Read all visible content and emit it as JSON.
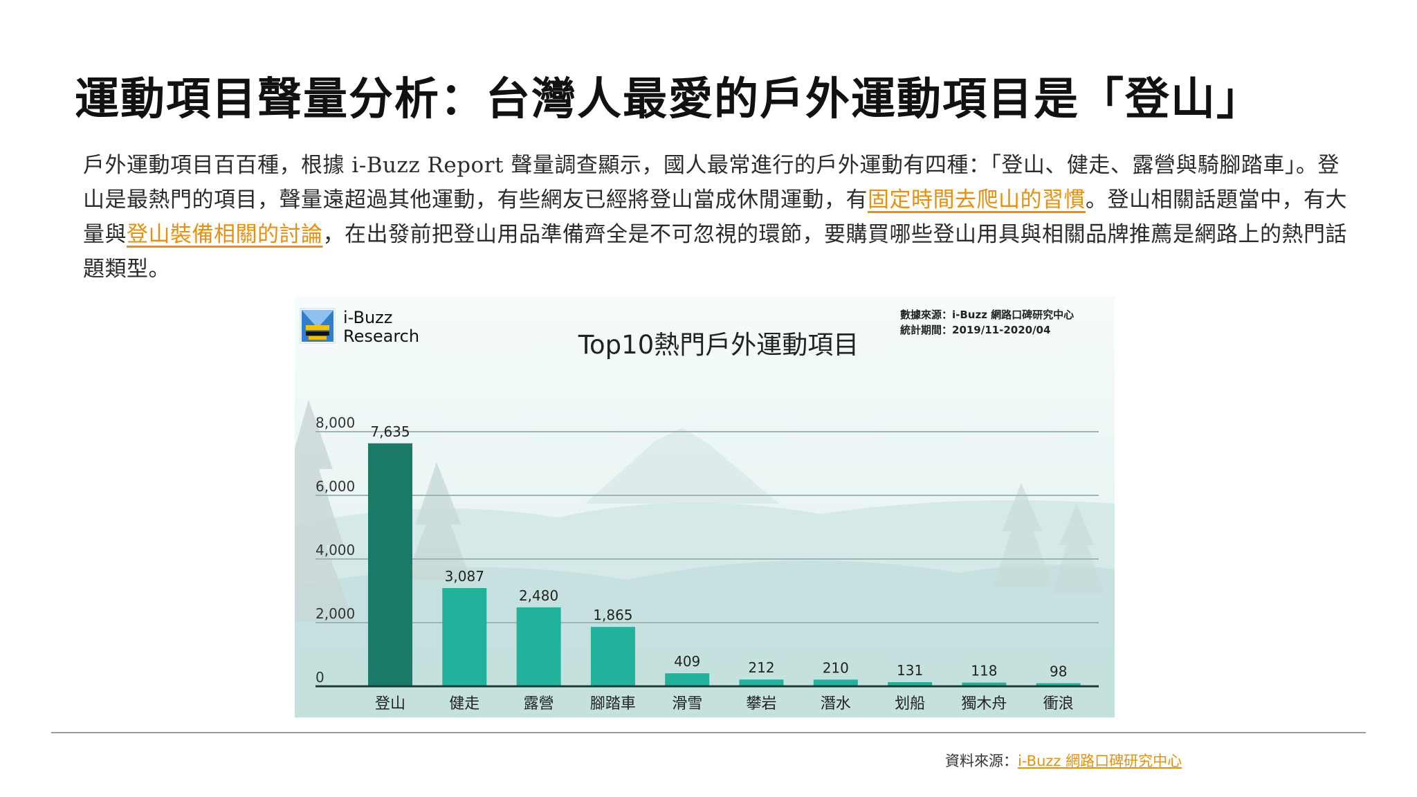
{
  "page": {
    "title": "運動項目聲量分析：台灣人最愛的戶外運動項目是「登山」",
    "para": {
      "p1": "戶外運動項目百百種，根據 i-Buzz Report 聲量調查顯示，國人最常進行的戶外運動有四種：「登山、健走、露營與騎腳踏車」。登山是最熱門的項目，聲量遠超過其他運動，有些網友已經將登山當成休閒運動，有",
      "link1": "固定時間去爬山的習慣",
      "p2": "。登山相關話題當中，有大量與",
      "link2": "登山裝備相關的討論",
      "p3": "，在出發前把登山用品準備齊全是不可忽視的環節，要購買哪些登山用具與相關品牌推薦是網路上的熱門話題類型。"
    },
    "footer": {
      "label": "資料來源：",
      "link": "i-Buzz 網路口碑研究中心"
    }
  },
  "chart_header": {
    "logo_line1": "i-Buzz",
    "logo_line2": "Research",
    "source_line1": "數據來源：i-Buzz 網路口碑研究中心",
    "source_line2": "統計期間：2019/11-2020/04"
  },
  "chart_data": {
    "type": "bar",
    "title": "Top10熱門戶外運動項目",
    "categories": [
      "登山",
      "健走",
      "露營",
      "腳踏車",
      "滑雪",
      "攀岩",
      "潛水",
      "划船",
      "獨木舟",
      "衝浪"
    ],
    "values": [
      7635,
      3087,
      2480,
      1865,
      409,
      212,
      210,
      131,
      118,
      98
    ],
    "value_labels": [
      "7,635",
      "3,087",
      "2,480",
      "1,865",
      "409",
      "212",
      "210",
      "131",
      "118",
      "98"
    ],
    "yticks": [
      0,
      2000,
      4000,
      6000,
      8000
    ],
    "ytick_labels": [
      "0",
      "2,000",
      "4,000",
      "6,000",
      "8,000"
    ],
    "ylim": [
      0,
      8000
    ],
    "xlabel": "",
    "ylabel": "",
    "grid": true,
    "colors": {
      "first_bar": "#1a7a68",
      "bars": "#22b19b",
      "grid": "#9cb5b5",
      "axis": "#1b3a3a"
    }
  }
}
